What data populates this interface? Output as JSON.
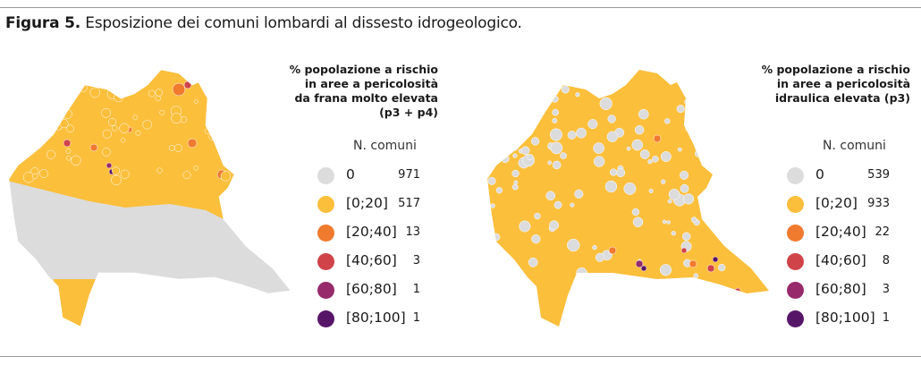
{
  "title": {
    "bold": "Figura 5.",
    "text": " Esposizione dei comuni lombardi al dissesto idrogeologico."
  },
  "colors": {
    "0": "#dcdcdc",
    "0-20": "#fbbf3c",
    "20-40": "#f07a2e",
    "40-60": "#cf4349",
    "60-80": "#962a6a",
    "80-100": "#571568"
  },
  "maps": [
    {
      "legend_title": [
        "% popolazione a rischio",
        "in aree a pericolosità",
        "da frana molto elevata",
        "(p3 + p4)"
      ],
      "count_header": "N. comuni",
      "classes": [
        {
          "label": "0",
          "count": "971",
          "color": "#dcdcdc"
        },
        {
          "label": "[0;20]",
          "count": "517",
          "color": "#fbbf3c"
        },
        {
          "label": "[20;40]",
          "count": "13",
          "color": "#f07a2e"
        },
        {
          "label": "[40;60]",
          "count": "3",
          "color": "#cf4349"
        },
        {
          "label": "[60;80]",
          "count": "1",
          "color": "#962a6a"
        },
        {
          "label": "[80;100]",
          "count": "1",
          "color": "#571568"
        }
      ]
    },
    {
      "legend_title": [
        "% popolazione a rischio",
        "in aree a pericolosità",
        "idraulica elevata (p3)"
      ],
      "count_header": "N. comuni",
      "classes": [
        {
          "label": "0",
          "count": "539",
          "color": "#dcdcdc"
        },
        {
          "label": "[0;20]",
          "count": "933",
          "color": "#fbbf3c"
        },
        {
          "label": "[20;40]",
          "count": "22",
          "color": "#f07a2e"
        },
        {
          "label": "[40;60]",
          "count": "8",
          "color": "#cf4349"
        },
        {
          "label": "[60;80]",
          "count": "3",
          "color": "#962a6a"
        },
        {
          "label": "[80;100]",
          "count": "1",
          "color": "#571568"
        }
      ]
    }
  ]
}
